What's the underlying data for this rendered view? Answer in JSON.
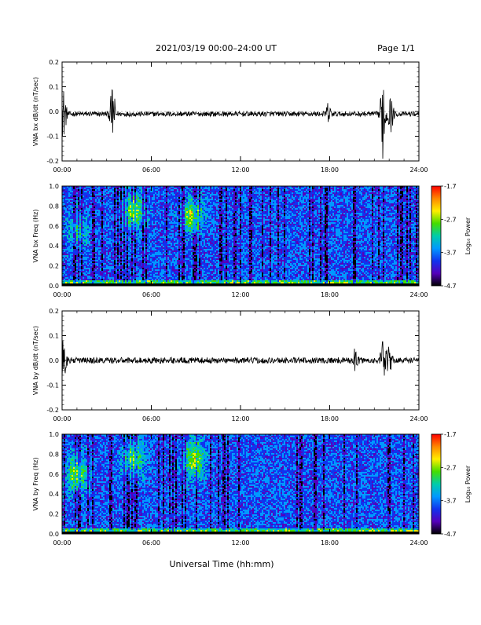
{
  "header": {
    "title": "2021/03/19   00:00–24:00 UT",
    "page": "Page 1/1"
  },
  "x_axis_title": "Universal Time (hh:mm)",
  "colorbar": {
    "label": "Log₁₀ Power",
    "ticks": [
      "-1.7",
      "-2.7",
      "-3.7",
      "-4.7"
    ],
    "stops": [
      "#ff0000",
      "#ff8800",
      "#ffee00",
      "#44dd00",
      "#00ccaa",
      "#0099ff",
      "#1133ee",
      "#5500bb",
      "#000000"
    ]
  },
  "chart_data": [
    {
      "type": "line",
      "ylabel": "VNA bx dB/dt (nT/sec)",
      "ylim": [
        -0.2,
        0.2
      ],
      "yticks": [
        "0.2",
        "0.1",
        "0.0",
        "-0.1",
        "-0.2"
      ],
      "xlim_hours": [
        0,
        24
      ],
      "xticks": [
        "00:00",
        "06:00",
        "12:00",
        "18:00",
        "24:00"
      ],
      "baseline": -0.01,
      "noise_amplitude": 0.01,
      "bursts": [
        {
          "t": 0.1,
          "amplitude": 0.1
        },
        {
          "t": 3.4,
          "amplitude": 0.11
        },
        {
          "t": 17.9,
          "amplitude": 0.04
        },
        {
          "t": 21.6,
          "amplitude": 0.18
        },
        {
          "t": 22.1,
          "amplitude": 0.07
        }
      ]
    },
    {
      "type": "heatmap",
      "ylabel": "VNA bx Freq (Hz)",
      "ylim": [
        0.0,
        1.0
      ],
      "yticks": [
        "1.0",
        "0.8",
        "0.6",
        "0.4",
        "0.2",
        "0.0"
      ],
      "xticks": [
        "00:00",
        "06:00",
        "12:00",
        "18:00",
        "24:00"
      ],
      "zlim": [
        -4.7,
        -1.7
      ],
      "features": [
        {
          "t": 4.8,
          "f": 0.75,
          "power": -2.8
        },
        {
          "t": 8.8,
          "f": 0.7,
          "power": -2.7
        },
        {
          "t": 1.0,
          "f": 0.55,
          "power": -3.2
        }
      ]
    },
    {
      "type": "line",
      "ylabel": "VNA by dB/dt (nT/sec)",
      "ylim": [
        -0.2,
        0.2
      ],
      "yticks": [
        "0.2",
        "0.1",
        "0.0",
        "-0.1",
        "-0.2"
      ],
      "xlim_hours": [
        0,
        24
      ],
      "xticks": [
        "00:00",
        "06:00",
        "12:00",
        "18:00",
        "24:00"
      ],
      "baseline": 0.0,
      "noise_amplitude": 0.012,
      "bursts": [
        {
          "t": 0.1,
          "amplitude": 0.08
        },
        {
          "t": 19.7,
          "amplitude": 0.04
        },
        {
          "t": 21.6,
          "amplitude": 0.08
        },
        {
          "t": 22.0,
          "amplitude": 0.05
        }
      ]
    },
    {
      "type": "heatmap",
      "ylabel": "VNA by Freq (Hz)",
      "ylim": [
        0.0,
        1.0
      ],
      "yticks": [
        "1.0",
        "0.8",
        "0.6",
        "0.4",
        "0.2",
        "0.0"
      ],
      "xticks": [
        "00:00",
        "06:00",
        "12:00",
        "18:00",
        "24:00"
      ],
      "zlim": [
        -4.7,
        -1.7
      ],
      "features": [
        {
          "t": 1.0,
          "f": 0.6,
          "power": -2.8
        },
        {
          "t": 4.8,
          "f": 0.75,
          "power": -2.8
        },
        {
          "t": 8.9,
          "f": 0.75,
          "power": -2.7
        }
      ]
    }
  ]
}
